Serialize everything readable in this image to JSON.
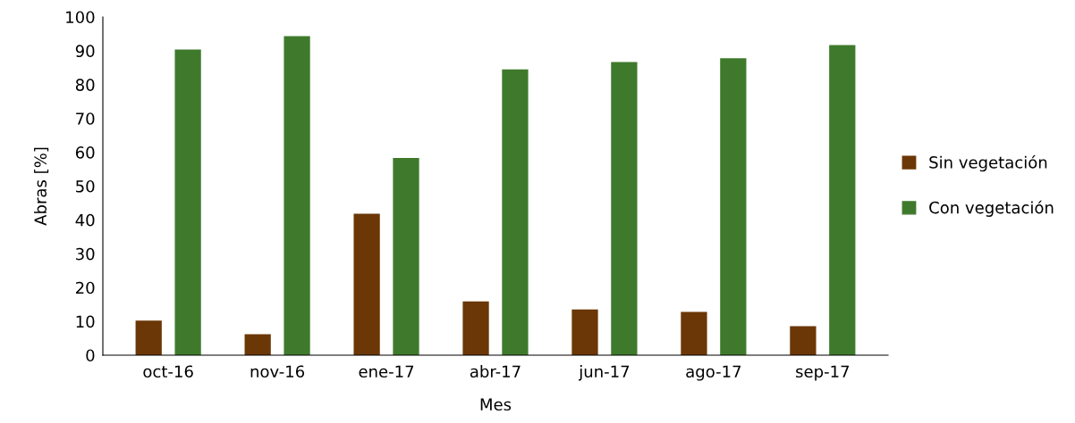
{
  "chart_data": {
    "type": "bar",
    "xlabel": "Mes",
    "ylabel": "Abras [%]",
    "categories": [
      "oct-16",
      "nov-16",
      "ene-17",
      "abr-17",
      "jun-17",
      "ago-17",
      "sep-17"
    ],
    "series": [
      {
        "name": "Sin vegetación",
        "color": "#6b3706",
        "values": [
          10.2,
          6.2,
          41.8,
          15.9,
          13.5,
          12.8,
          8.6
        ]
      },
      {
        "name": "Con vegetación",
        "color": "#3f7a2c",
        "values": [
          90.4,
          94.3,
          58.3,
          84.5,
          86.7,
          87.8,
          91.7
        ]
      }
    ],
    "ylim": [
      0,
      100
    ],
    "yticks": [
      0,
      10,
      20,
      30,
      40,
      50,
      60,
      70,
      80,
      90,
      100
    ],
    "grid": false,
    "legend": "right"
  }
}
